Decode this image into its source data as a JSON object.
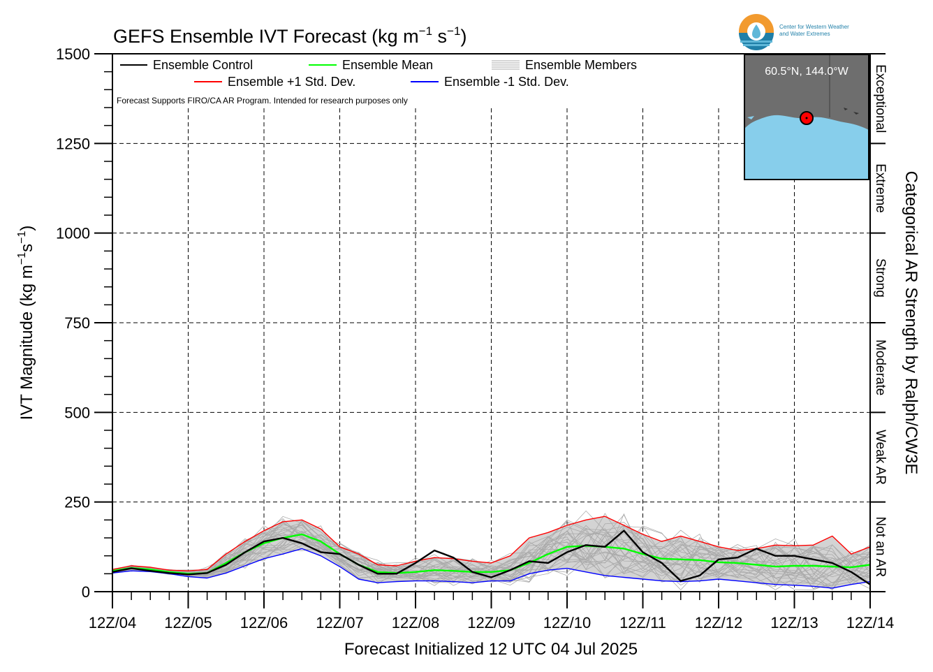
{
  "title_text": "GEFS Ensemble IVT Forecast (kg m",
  "title_unit_sup1": "−1",
  "title_unit_mid": " s",
  "title_unit_sup2": "−1",
  "title_unit_end": ")",
  "ylabel_main": "IVT Magnitude (kg m",
  "ylabel_sup1": "−1",
  "ylabel_mid": "s",
  "ylabel_sup2": "−1",
  "ylabel_end": ")",
  "right_label": "Categorical AR Strength by Ralph/CW3E",
  "note": "Forecast Supports FIRO/CA AR Program. Intended for research purposes only",
  "logo": {
    "line1": "Center for Western Weather",
    "line2": "and Water Extremes",
    "icon": "cw3e-logo-icon",
    "colors": {
      "orange": "#f29a2e",
      "blue": "#1f7fa8",
      "light_blue": "#5fb7d8"
    }
  },
  "inset_map": {
    "location": "60.5°N, 144.0°W",
    "icon": "location-marker-icon",
    "colors": {
      "land": "#6e6e6e",
      "ocean": "#87ceeb",
      "marker": "#ff0000"
    }
  },
  "colors": {
    "control": "#000000",
    "mean": "#00ff00",
    "plus_sd": "#ff0000",
    "minus_sd": "#0000ff",
    "members": "#a9a9a9",
    "spread_fill": "#d3d3d3"
  },
  "chart_data": {
    "type": "line",
    "title": "GEFS Ensemble IVT Forecast (kg m−1 s−1)",
    "xlabel": "Forecast Initialized 12 UTC 04 Jul 2025",
    "ylabel": "IVT Magnitude (kg m−1s−1)",
    "xlim_days": [
      0,
      10
    ],
    "ylim": [
      0,
      1500
    ],
    "yticks": [
      0,
      250,
      500,
      750,
      1000,
      1250,
      1500
    ],
    "ytick_labels": [
      "0",
      "250",
      "500",
      "750",
      "1000",
      "1250",
      "1500"
    ],
    "xtick_labels": [
      "12Z/04",
      "12Z/05",
      "12Z/06",
      "12Z/07",
      "12Z/08",
      "12Z/09",
      "12Z/10",
      "12Z/11",
      "12Z/12",
      "12Z/13",
      "12Z/14"
    ],
    "grid": true,
    "legend_placement": "top-left",
    "legend": [
      {
        "label": "Ensemble Control",
        "key": "control"
      },
      {
        "label": "Ensemble Mean",
        "key": "mean"
      },
      {
        "label": "Ensemble Members",
        "key": "members"
      },
      {
        "label": "Ensemble +1 Std. Dev.",
        "key": "plus_sd"
      },
      {
        "label": "Ensemble -1 Std. Dev.",
        "key": "minus_sd"
      }
    ],
    "categories": [
      {
        "label": "Not an AR",
        "range": [
          0,
          250
        ]
      },
      {
        "label": "Weak AR",
        "range": [
          250,
          500
        ]
      },
      {
        "label": "Moderate",
        "range": [
          500,
          750
        ]
      },
      {
        "label": "Strong",
        "range": [
          750,
          1000
        ]
      },
      {
        "label": "Extreme",
        "range": [
          1000,
          1250
        ]
      },
      {
        "label": "Exceptional",
        "range": [
          1250,
          1500
        ]
      }
    ],
    "series": [
      {
        "name": "Ensemble Control",
        "key": "control",
        "x": [
          0,
          0.25,
          0.5,
          0.75,
          1,
          1.25,
          1.5,
          1.75,
          2,
          2.25,
          2.5,
          2.75,
          3,
          3.25,
          3.5,
          3.75,
          4,
          4.25,
          4.5,
          4.75,
          5,
          5.25,
          5.5,
          5.75,
          6,
          6.25,
          6.5,
          6.75,
          7,
          7.25,
          7.5,
          7.75,
          8,
          8.25,
          8.5,
          8.75,
          9,
          9.25,
          9.5,
          9.75,
          10
        ],
        "y": [
          55,
          65,
          58,
          52,
          48,
          52,
          75,
          110,
          140,
          150,
          135,
          110,
          105,
          75,
          50,
          50,
          80,
          115,
          95,
          55,
          40,
          60,
          85,
          80,
          110,
          130,
          125,
          170,
          110,
          80,
          30,
          45,
          90,
          95,
          120,
          100,
          100,
          90,
          80,
          55,
          20
        ]
      },
      {
        "name": "Ensemble Mean",
        "key": "mean",
        "x": [
          0,
          0.25,
          0.5,
          0.75,
          1,
          1.25,
          1.5,
          1.75,
          2,
          2.25,
          2.5,
          2.75,
          3,
          3.25,
          3.5,
          3.75,
          4,
          4.25,
          4.5,
          4.75,
          5,
          5.25,
          5.5,
          5.75,
          6,
          6.25,
          6.5,
          6.75,
          7,
          7.25,
          7.5,
          7.75,
          8,
          8.25,
          8.5,
          8.75,
          9,
          9.25,
          9.5,
          9.75,
          10
        ],
        "y": [
          58,
          66,
          62,
          55,
          50,
          52,
          80,
          110,
          135,
          150,
          160,
          140,
          105,
          75,
          55,
          52,
          55,
          60,
          58,
          55,
          55,
          60,
          80,
          105,
          125,
          128,
          125,
          120,
          105,
          92,
          90,
          88,
          82,
          80,
          75,
          70,
          72,
          72,
          70,
          68,
          75
        ]
      },
      {
        "name": "Ensemble +1 Std. Dev.",
        "key": "plus_sd",
        "x": [
          0,
          0.25,
          0.5,
          0.75,
          1,
          1.25,
          1.5,
          1.75,
          2,
          2.25,
          2.5,
          2.75,
          3,
          3.25,
          3.5,
          3.75,
          4,
          4.25,
          4.5,
          4.75,
          5,
          5.25,
          5.5,
          5.75,
          6,
          6.25,
          6.5,
          6.75,
          7,
          7.25,
          7.5,
          7.75,
          8,
          8.25,
          8.5,
          8.75,
          9,
          9.25,
          9.5,
          9.75,
          10
        ],
        "y": [
          62,
          72,
          68,
          60,
          58,
          62,
          105,
          140,
          170,
          195,
          200,
          175,
          125,
          105,
          75,
          72,
          85,
          95,
          92,
          85,
          80,
          100,
          150,
          165,
          185,
          200,
          210,
          185,
          160,
          140,
          155,
          140,
          125,
          115,
          120,
          130,
          128,
          130,
          155,
          105,
          125
        ]
      },
      {
        "name": "Ensemble -1 Std. Dev.",
        "key": "minus_sd",
        "x": [
          0,
          0.25,
          0.5,
          0.75,
          1,
          1.25,
          1.5,
          1.75,
          2,
          2.25,
          2.5,
          2.75,
          3,
          3.25,
          3.5,
          3.75,
          4,
          4.25,
          4.5,
          4.75,
          5,
          5.25,
          5.5,
          5.75,
          6,
          6.25,
          6.5,
          6.75,
          7,
          7.25,
          7.5,
          7.75,
          8,
          8.25,
          8.5,
          8.75,
          9,
          9.25,
          9.5,
          9.75,
          10
        ],
        "y": [
          52,
          58,
          56,
          50,
          42,
          38,
          52,
          72,
          92,
          105,
          120,
          100,
          70,
          35,
          25,
          28,
          30,
          30,
          28,
          25,
          30,
          30,
          50,
          60,
          65,
          55,
          45,
          40,
          35,
          30,
          28,
          30,
          35,
          30,
          25,
          20,
          18,
          15,
          10,
          20,
          28
        ]
      }
    ]
  }
}
